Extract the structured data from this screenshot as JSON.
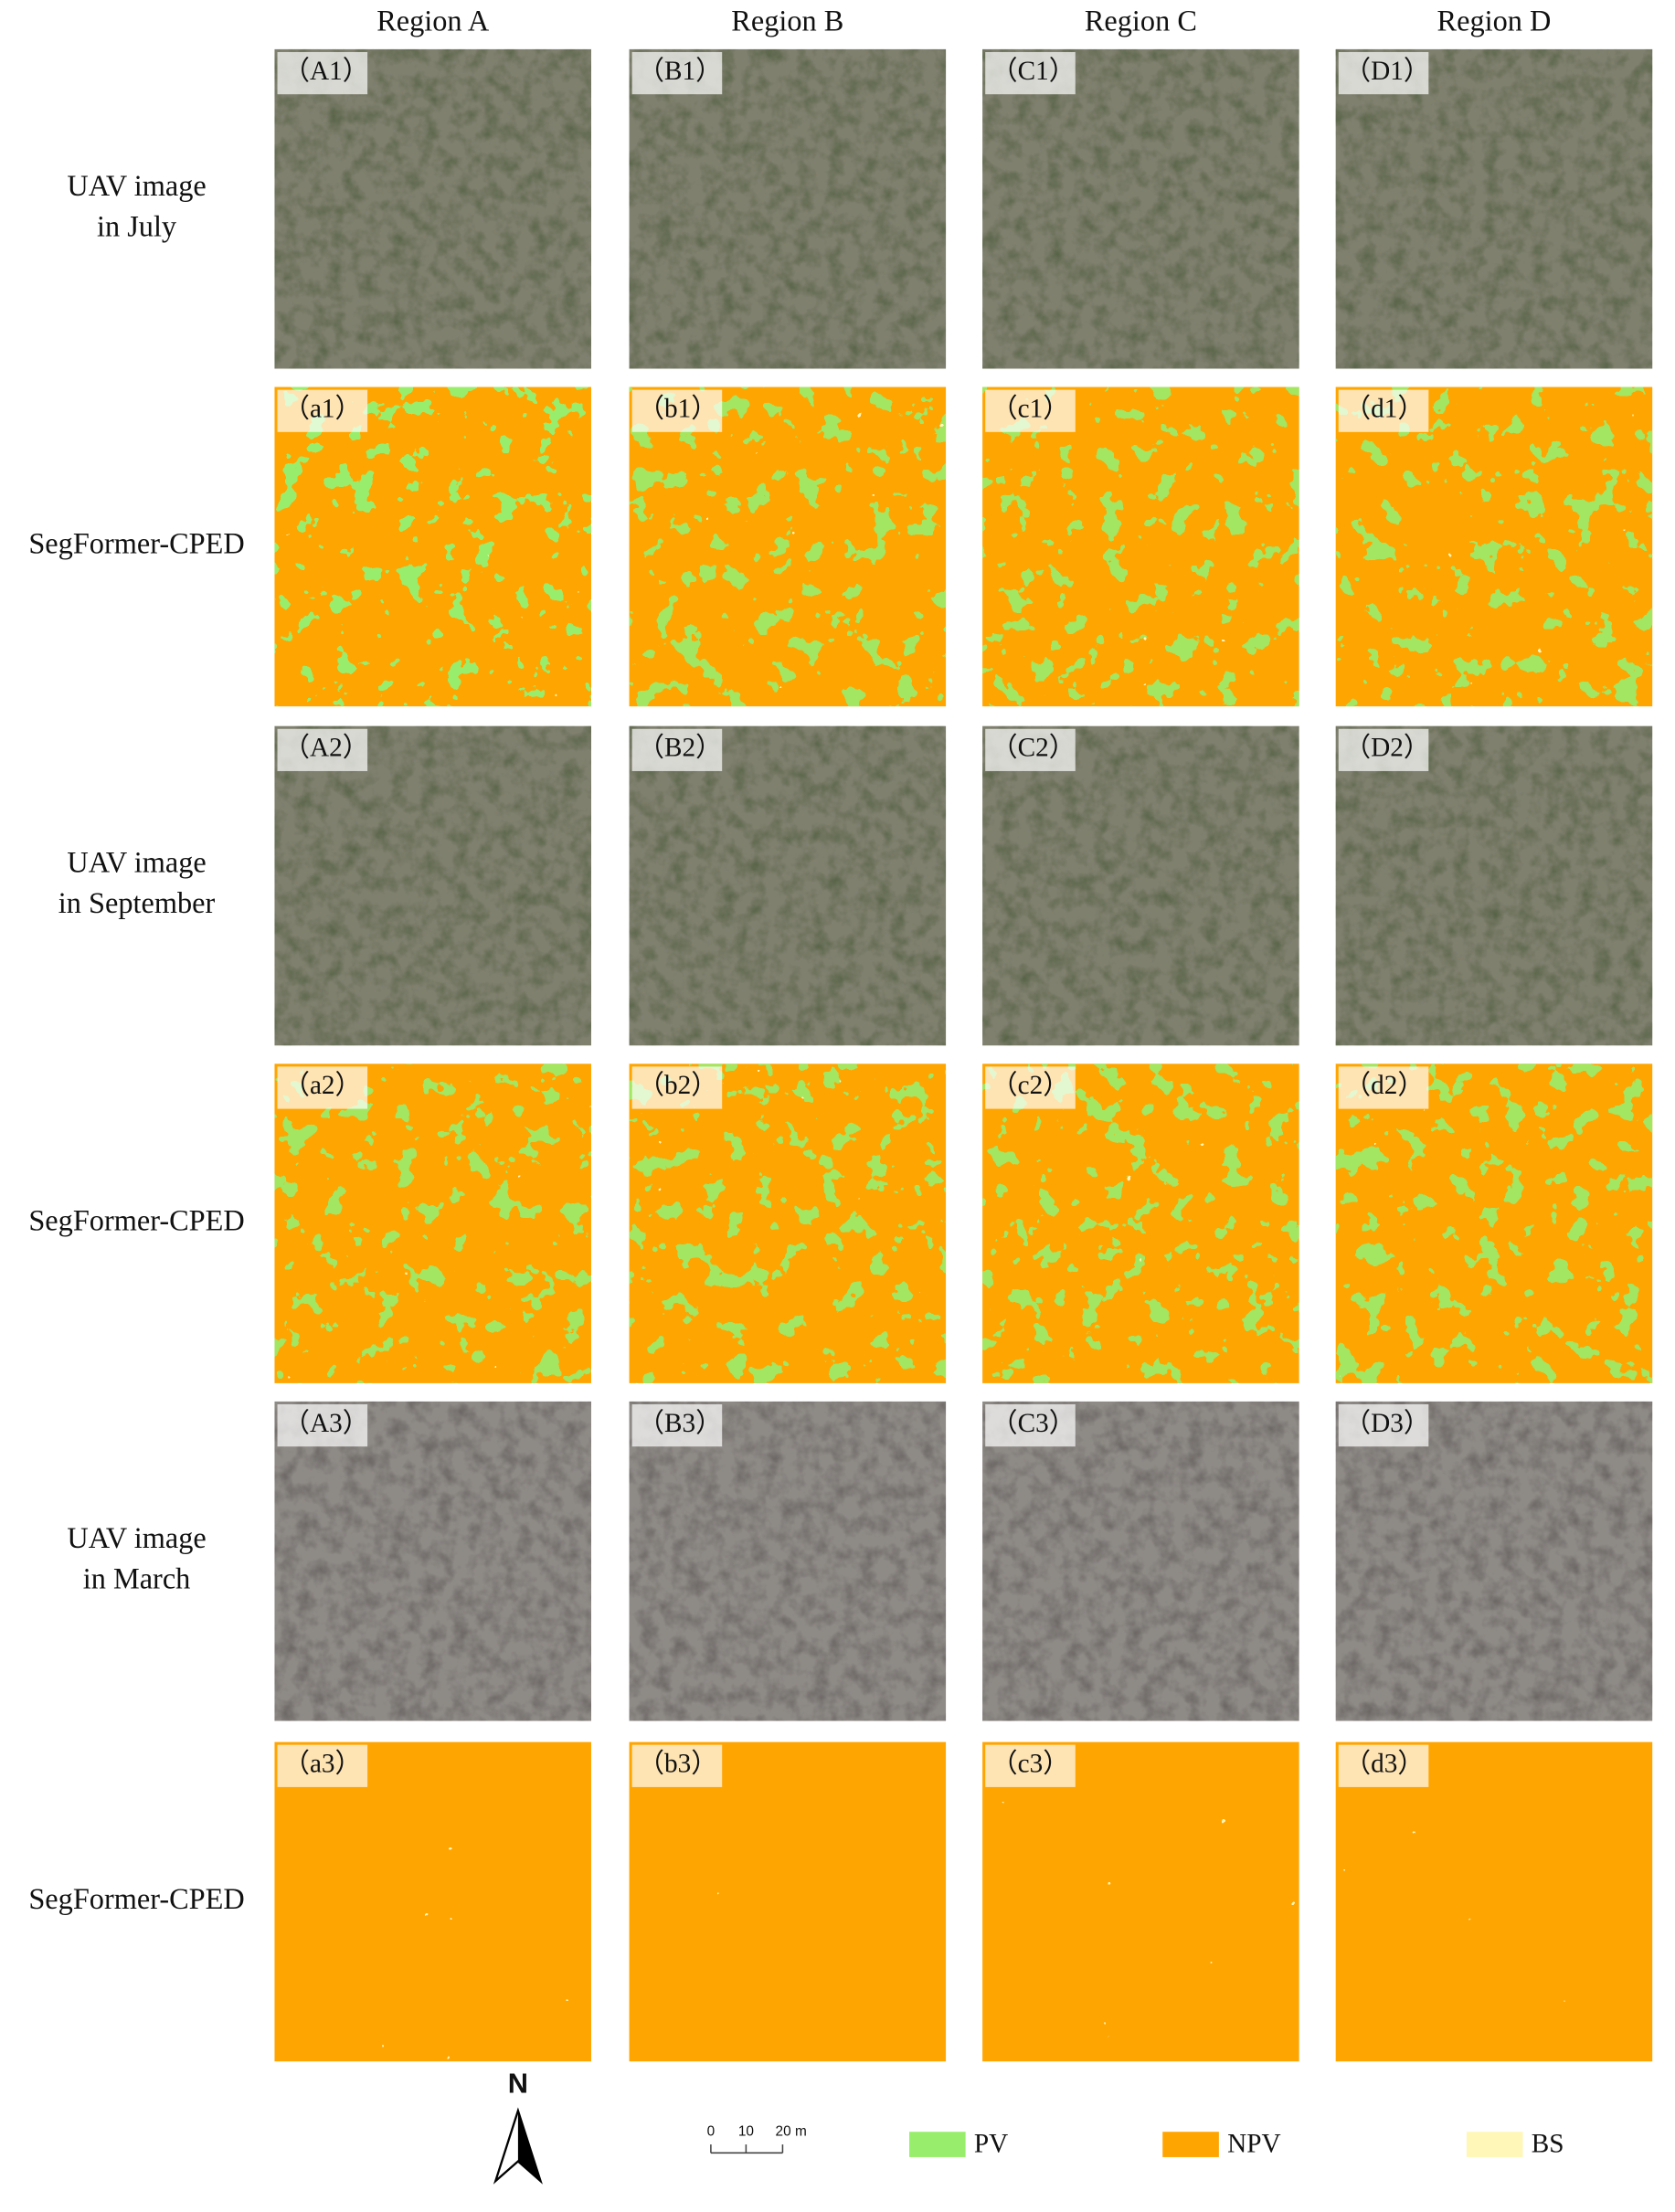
{
  "columns": [
    "Region A",
    "Region B",
    "Region C",
    "Region D"
  ],
  "rows": [
    {
      "label": [
        "UAV image",
        "in July"
      ],
      "panels": [
        "（A1）",
        "（B1）",
        "（C1）",
        "（D1）"
      ]
    },
    {
      "label": [
        "SegFormer-CPED"
      ],
      "panels": [
        "（a1）",
        "（b1）",
        "（c1）",
        "（d1）"
      ]
    },
    {
      "label": [
        "UAV image",
        "in September"
      ],
      "panels": [
        "（A2）",
        "（B2）",
        "（C2）",
        "（D2）"
      ]
    },
    {
      "label": [
        "SegFormer-CPED"
      ],
      "panels": [
        "（a2）",
        "（b2）",
        "（c2）",
        "（d2）"
      ]
    },
    {
      "label": [
        "UAV image",
        "in March"
      ],
      "panels": [
        "（A3）",
        "（B3）",
        "（C3）",
        "（D3）"
      ]
    },
    {
      "label": [
        "SegFormer-CPED"
      ],
      "panels": [
        "（a3）",
        "（b3）",
        "（c3）",
        "（d3）"
      ]
    }
  ],
  "north": "N",
  "scale_bar": [
    "0",
    "10",
    "20 m"
  ],
  "legend": [
    {
      "label": "PV",
      "color": "#98ee6c"
    },
    {
      "label": "NPV",
      "color": "#ffa502"
    },
    {
      "label": "BS",
      "color": "#fff7b8"
    }
  ]
}
